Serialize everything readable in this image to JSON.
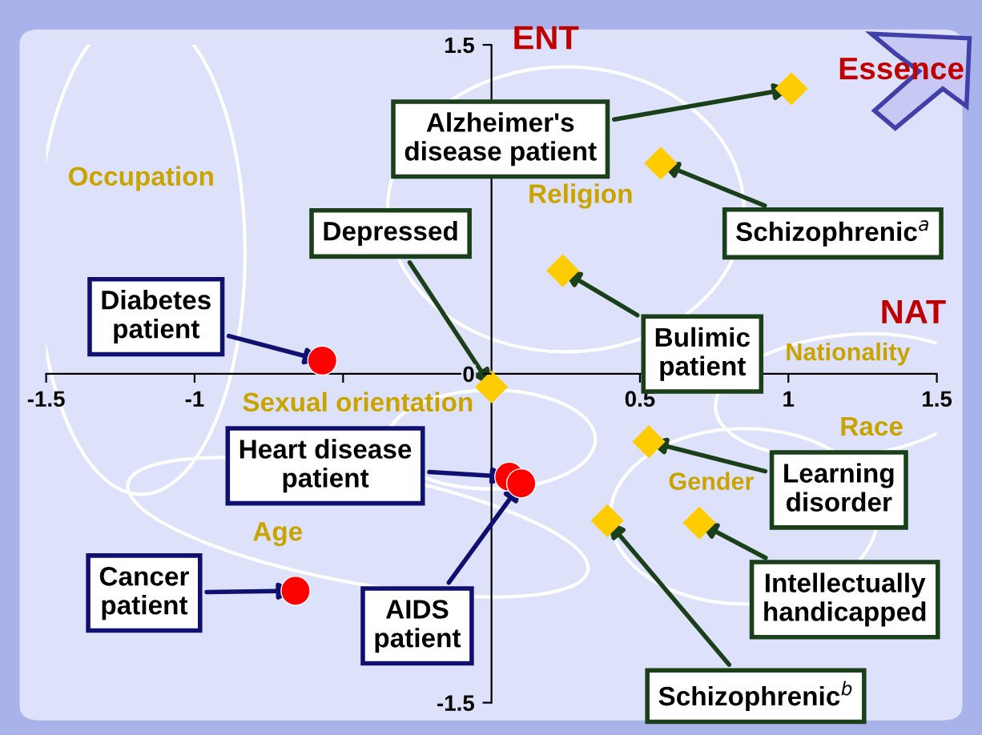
{
  "chart_data": {
    "type": "scatter",
    "xlabel": "NAT",
    "ylabel": "ENT",
    "xlim": [
      -1.5,
      1.5
    ],
    "ylim": [
      -1.5,
      1.5
    ],
    "xticks": [
      -1.5,
      -1,
      {
        "value": -0.5,
        "label": null
      },
      {
        "value": 0,
        "label": null
      },
      0.5,
      1,
      1.5
    ],
    "yticks": [
      -1.5,
      0,
      1.5
    ],
    "grid": false,
    "legend": false,
    "series": [
      {
        "color": "#ff0000",
        "marker": "circle",
        "x": [
          -0.57,
          0.06,
          0.1,
          -0.66
        ],
        "values": [
          0.06,
          -0.47,
          -0.5,
          -0.99
        ]
      },
      {
        "color": "#ffcc00",
        "marker": "diamond",
        "x": [
          1.01,
          0.57,
          0,
          0.24,
          0.53,
          0.39,
          0.7
        ],
        "values": [
          1.3,
          0.96,
          -0.06,
          0.47,
          -0.31,
          -0.67,
          -0.68
        ]
      }
    ],
    "annotations": [
      {
        "text": "Diabetes patient",
        "x": -0.57,
        "y": 0.06
      },
      {
        "text": "Heart disease patient",
        "x": 0.06,
        "y": -0.47
      },
      {
        "text": "AIDS patient",
        "x": 0.1,
        "y": -0.5
      },
      {
        "text": "Cancer patient",
        "x": -0.66,
        "y": -0.99
      },
      {
        "text": "Alzheimer's disease patient",
        "x": 1.01,
        "y": 1.3
      },
      {
        "text": "Schizophrenic$^{a}$",
        "x": 0.57,
        "y": 0.96
      },
      {
        "text": "Depressed",
        "x": 0,
        "y": -0.06
      },
      {
        "text": "Bulimic patient",
        "x": 0.24,
        "y": 0.47
      },
      {
        "text": "Learning disorder",
        "x": 0.53,
        "y": -0.31
      },
      {
        "text": "Schizophrenic$^{b}$",
        "x": 0.39,
        "y": -0.67
      },
      {
        "text": "Intellectually handicapped",
        "x": 0.7,
        "y": -0.68
      },
      "Essence",
      "Occupation",
      "Religion",
      "Sexual orientation",
      "Age",
      "Gender",
      "Nationality",
      "Race"
    ]
  }
}
